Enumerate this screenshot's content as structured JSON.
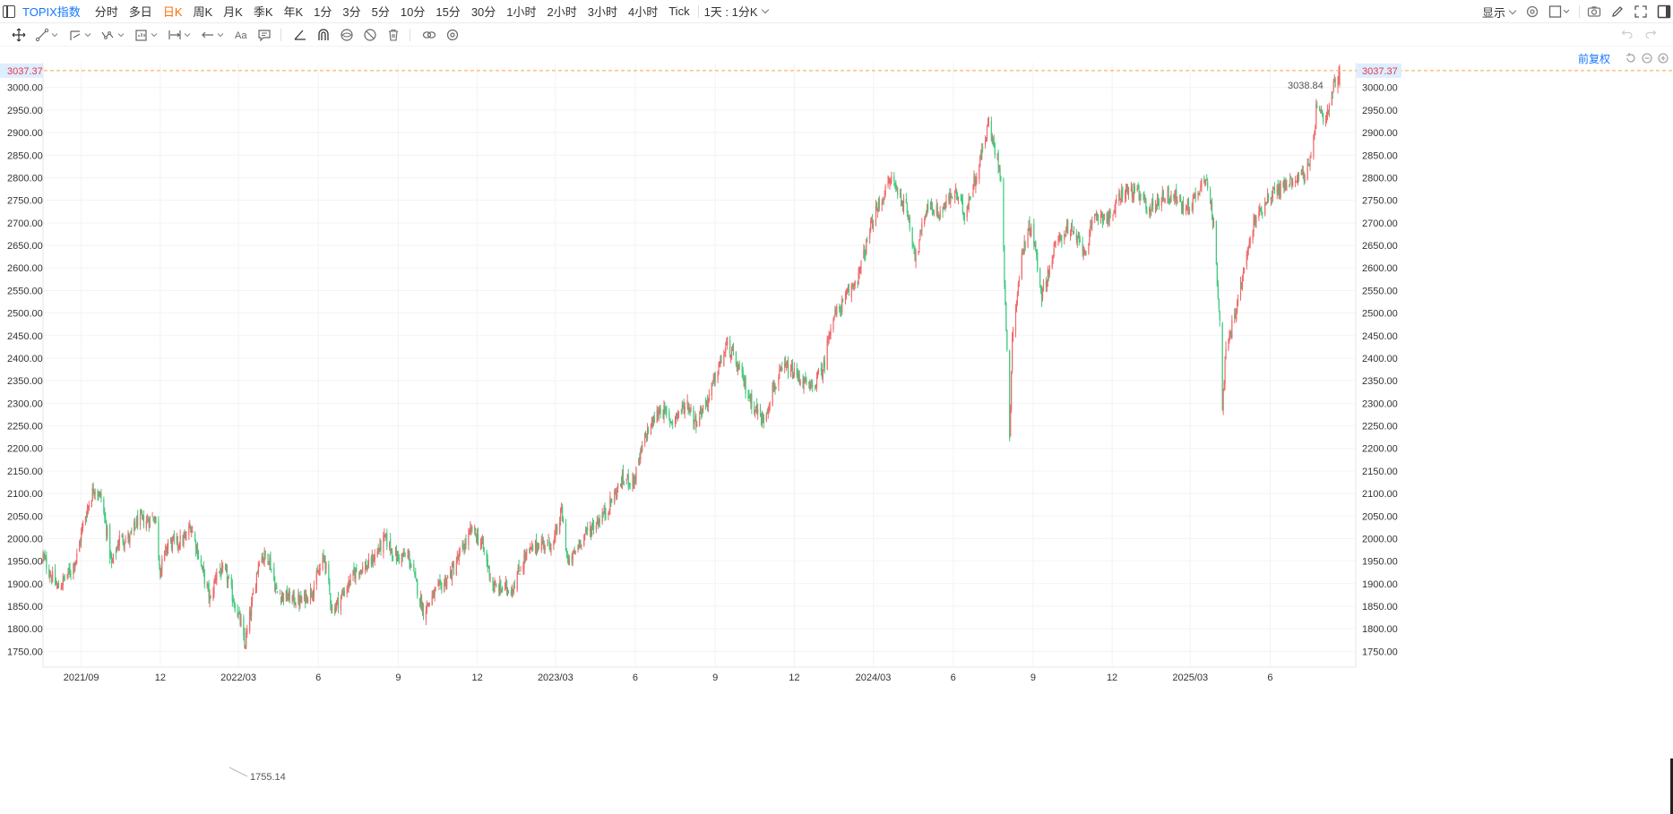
{
  "toolbar": {
    "symbol": "TOPIX指数",
    "periods": [
      "分时",
      "多日",
      "日K",
      "周K",
      "月K",
      "季K",
      "年K",
      "1分",
      "3分",
      "5分",
      "10分",
      "15分",
      "30分",
      "1小时",
      "2小时",
      "3小时",
      "4小时",
      "Tick"
    ],
    "active_period": "日K",
    "kline_combo": "1天 : 1分K",
    "display_label": "显示",
    "accent_color": "#1677ff",
    "active_color": "#f5700a"
  },
  "right_controls": {
    "adjust_label": "前复权",
    "icons": [
      "reset-icon",
      "zoom-out-icon",
      "zoom-in-icon"
    ]
  },
  "drawing_tools": [
    "crosshair-move-icon",
    "line-tool-icon",
    "channel-tool-icon",
    "pattern-tool-icon",
    "measure-tool-icon",
    "range-tool-icon",
    "arrow-tool-icon",
    "text-tool-icon",
    "comment-icon",
    "angle-tool-icon",
    "magnet-icon",
    "eye-icon",
    "hide-icon",
    "trash-icon",
    "link-icon",
    "settings-icon"
  ],
  "chart_data": {
    "type": "candlestick",
    "title": "TOPIX指数",
    "period": "日K",
    "ylim": [
      1715,
      3055
    ],
    "y_ticks": [
      1750,
      1800,
      1850,
      1900,
      1950,
      2000,
      2050,
      2100,
      2150,
      2200,
      2250,
      2300,
      2350,
      2400,
      2450,
      2500,
      2550,
      2600,
      2650,
      2700,
      2750,
      2800,
      2850,
      2900,
      2950,
      3000
    ],
    "y_tick_labels": [
      "1750.00",
      "1800.00",
      "1850.00",
      "1900.00",
      "1950.00",
      "2000.00",
      "2050.00",
      "2100.00",
      "2150.00",
      "2200.00",
      "2250.00",
      "2300.00",
      "2350.00",
      "2400.00",
      "2450.00",
      "2500.00",
      "2550.00",
      "2600.00",
      "2650.00",
      "2700.00",
      "2750.00",
      "2800.00",
      "2850.00",
      "2900.00",
      "2950.00",
      "3000.00"
    ],
    "x_range": [
      "2021-07-19",
      "2025-08-20"
    ],
    "x_ticks": [
      {
        "label": "2021/09",
        "date": "2021-09-01"
      },
      {
        "label": "12",
        "date": "2021-12-01"
      },
      {
        "label": "2022/03",
        "date": "2022-03-01"
      },
      {
        "label": "6",
        "date": "2022-06-01"
      },
      {
        "label": "9",
        "date": "2022-09-01"
      },
      {
        "label": "12",
        "date": "2022-12-01"
      },
      {
        "label": "2023/03",
        "date": "2023-03-01"
      },
      {
        "label": "6",
        "date": "2023-06-01"
      },
      {
        "label": "9",
        "date": "2023-09-01"
      },
      {
        "label": "12",
        "date": "2023-12-01"
      },
      {
        "label": "2024/03",
        "date": "2024-03-01"
      },
      {
        "label": "6",
        "date": "2024-06-01"
      },
      {
        "label": "9",
        "date": "2024-09-01"
      },
      {
        "label": "12",
        "date": "2024-12-01"
      },
      {
        "label": "2025/03",
        "date": "2025-03-01"
      },
      {
        "label": "6",
        "date": "2025-06-01"
      }
    ],
    "price_path": [
      [
        "2021-07-19",
        1960
      ],
      [
        "2021-07-28",
        1920
      ],
      [
        "2021-08-05",
        1890
      ],
      [
        "2021-08-20",
        1930
      ],
      [
        "2021-08-27",
        1960
      ],
      [
        "2021-09-03",
        2030
      ],
      [
        "2021-09-10",
        2080
      ],
      [
        "2021-09-16",
        2115
      ],
      [
        "2021-09-24",
        2090
      ],
      [
        "2021-10-01",
        2010
      ],
      [
        "2021-10-06",
        1940
      ],
      [
        "2021-10-15",
        2000
      ],
      [
        "2021-10-27",
        2000
      ],
      [
        "2021-11-05",
        2040
      ],
      [
        "2021-11-16",
        2040
      ],
      [
        "2021-11-25",
        2050
      ],
      [
        "2021-12-01",
        1930
      ],
      [
        "2021-12-10",
        1990
      ],
      [
        "2021-12-20",
        1990
      ],
      [
        "2021-12-30",
        2000
      ],
      [
        "2022-01-05",
        2030
      ],
      [
        "2022-01-12",
        1980
      ],
      [
        "2022-01-21",
        1910
      ],
      [
        "2022-01-28",
        1860
      ],
      [
        "2022-02-04",
        1930
      ],
      [
        "2022-02-15",
        1920
      ],
      [
        "2022-02-24",
        1860
      ],
      [
        "2022-03-04",
        1810
      ],
      [
        "2022-03-08",
        1760
      ],
      [
        "2022-03-17",
        1860
      ],
      [
        "2022-03-25",
        1960
      ],
      [
        "2022-04-05",
        1960
      ],
      [
        "2022-04-14",
        1880
      ],
      [
        "2022-04-27",
        1870
      ],
      [
        "2022-05-12",
        1860
      ],
      [
        "2022-05-26",
        1890
      ],
      [
        "2022-06-08",
        1960
      ],
      [
        "2022-06-17",
        1840
      ],
      [
        "2022-06-30",
        1880
      ],
      [
        "2022-07-15",
        1930
      ],
      [
        "2022-07-29",
        1940
      ],
      [
        "2022-08-17",
        2000
      ],
      [
        "2022-08-29",
        1960
      ],
      [
        "2022-09-13",
        1960
      ],
      [
        "2022-09-20",
        1910
      ],
      [
        "2022-09-30",
        1840
      ],
      [
        "2022-10-14",
        1880
      ],
      [
        "2022-10-31",
        1920
      ],
      [
        "2022-11-10",
        1960
      ],
      [
        "2022-11-25",
        2020
      ],
      [
        "2022-12-06",
        1990
      ],
      [
        "2022-12-20",
        1890
      ],
      [
        "2022-12-29",
        1890
      ],
      [
        "2023-01-10",
        1890
      ],
      [
        "2023-01-25",
        1960
      ],
      [
        "2023-02-10",
        1990
      ],
      [
        "2023-02-27",
        1990
      ],
      [
        "2023-03-08",
        2060
      ],
      [
        "2023-03-16",
        1940
      ],
      [
        "2023-03-31",
        2000
      ],
      [
        "2023-04-14",
        2030
      ],
      [
        "2023-04-28",
        2060
      ],
      [
        "2023-05-17",
        2130
      ],
      [
        "2023-05-31",
        2130
      ],
      [
        "2023-06-13",
        2230
      ],
      [
        "2023-06-30",
        2290
      ],
      [
        "2023-07-12",
        2260
      ],
      [
        "2023-07-31",
        2300
      ],
      [
        "2023-08-09",
        2260
      ],
      [
        "2023-08-24",
        2310
      ],
      [
        "2023-09-05",
        2380
      ],
      [
        "2023-09-15",
        2430
      ],
      [
        "2023-09-29",
        2370
      ],
      [
        "2023-10-11",
        2310
      ],
      [
        "2023-10-26",
        2260
      ],
      [
        "2023-11-06",
        2330
      ],
      [
        "2023-11-20",
        2380
      ],
      [
        "2023-12-05",
        2360
      ],
      [
        "2023-12-20",
        2330
      ],
      [
        "2024-01-04",
        2380
      ],
      [
        "2024-01-12",
        2480
      ],
      [
        "2024-01-29",
        2530
      ],
      [
        "2024-02-14",
        2590
      ],
      [
        "2024-03-01",
        2710
      ],
      [
        "2024-03-22",
        2800
      ],
      [
        "2024-04-10",
        2720
      ],
      [
        "2024-04-19",
        2620
      ],
      [
        "2024-05-02",
        2740
      ],
      [
        "2024-05-16",
        2720
      ],
      [
        "2024-06-03",
        2770
      ],
      [
        "2024-06-14",
        2720
      ],
      [
        "2024-07-01",
        2830
      ],
      [
        "2024-07-11",
        2920
      ],
      [
        "2024-07-26",
        2810
      ],
      [
        "2024-08-05",
        2230
      ],
      [
        "2024-08-08",
        2450
      ],
      [
        "2024-08-20",
        2640
      ],
      [
        "2024-08-30",
        2700
      ],
      [
        "2024-09-11",
        2540
      ],
      [
        "2024-09-27",
        2650
      ],
      [
        "2024-10-10",
        2690
      ],
      [
        "2024-10-31",
        2640
      ],
      [
        "2024-11-13",
        2720
      ],
      [
        "2024-11-29",
        2710
      ],
      [
        "2024-12-13",
        2770
      ],
      [
        "2024-12-27",
        2770
      ],
      [
        "2025-01-14",
        2730
      ],
      [
        "2025-01-28",
        2760
      ],
      [
        "2025-02-12",
        2760
      ],
      [
        "2025-02-21",
        2730
      ],
      [
        "2025-03-05",
        2750
      ],
      [
        "2025-03-19",
        2810
      ],
      [
        "2025-03-28",
        2690
      ],
      [
        "2025-04-04",
        2490
      ],
      [
        "2025-04-07",
        2300
      ],
      [
        "2025-04-11",
        2410
      ],
      [
        "2025-04-24",
        2520
      ],
      [
        "2025-05-13",
        2700
      ],
      [
        "2025-05-30",
        2760
      ],
      [
        "2025-06-16",
        2780
      ],
      [
        "2025-06-30",
        2800
      ],
      [
        "2025-07-11",
        2810
      ],
      [
        "2025-07-18",
        2830
      ],
      [
        "2025-07-24",
        2950
      ],
      [
        "2025-08-04",
        2920
      ],
      [
        "2025-08-13",
        3000
      ],
      [
        "2025-08-20",
        3037
      ]
    ],
    "current_price": 3037.37,
    "current_price_label": "3037.37",
    "high_label": "3038.84",
    "low_label": "1755.14",
    "up_color": "#f0686a",
    "down_color": "#3fc97c",
    "price_line_color": "#f5a640"
  }
}
